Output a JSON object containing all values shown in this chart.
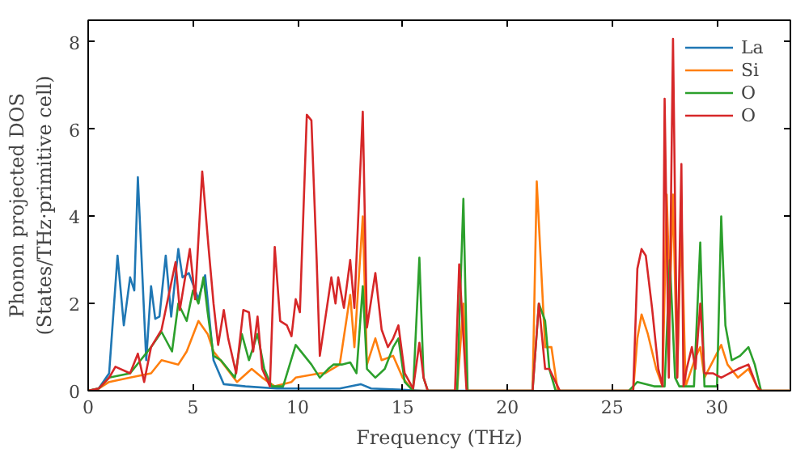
{
  "chart_data": {
    "type": "line",
    "xlabel": "Frequency (THz)",
    "ylabel": "Phonon projected DOS\n(States/THz·primitive cell)",
    "xlim": [
      0,
      33.5
    ],
    "ylim": [
      0,
      8.5
    ],
    "xticks": [
      0,
      5,
      10,
      15,
      20,
      25,
      30
    ],
    "yticks": [
      0,
      2,
      4,
      6,
      8
    ],
    "grid": false,
    "legend": "top right",
    "series": [
      {
        "name": "La",
        "color": "#1f77b4",
        "x": [
          0,
          0.5,
          1.0,
          1.4,
          1.7,
          2.0,
          2.2,
          2.37,
          2.77,
          3.0,
          3.2,
          3.4,
          3.7,
          3.96,
          4.3,
          4.5,
          4.8,
          5.26,
          5.58,
          5.98,
          6.47,
          7.5,
          9,
          12,
          13,
          13.5,
          15,
          16,
          18
        ],
        "values": [
          0,
          0.05,
          0.4,
          3.1,
          1.5,
          2.6,
          2.3,
          4.9,
          0.7,
          2.4,
          1.65,
          1.7,
          3.1,
          1.7,
          3.25,
          2.6,
          2.7,
          2.1,
          2.65,
          0.7,
          0.15,
          0.1,
          0.05,
          0.05,
          0.15,
          0.05,
          0.02,
          0,
          0
        ]
      },
      {
        "name": "Si",
        "color": "#ff7f0e",
        "x": [
          0,
          0.5,
          1.0,
          2.0,
          3.0,
          3.5,
          4.3,
          4.7,
          5.26,
          5.7,
          5.98,
          6.47,
          7.1,
          7.8,
          8.3,
          8.9,
          9.7,
          9.9,
          11.05,
          11.3,
          12.0,
          12.5,
          12.7,
          13.1,
          13.3,
          13.7,
          14.0,
          14.55,
          15.0,
          15.5,
          17.6,
          17.9,
          18.1,
          21.2,
          21.4,
          21.8,
          22.1,
          22.4,
          26.0,
          26.2,
          26.4,
          26.7,
          27.1,
          27.4,
          27.6,
          27.75,
          27.9,
          28.1,
          28.3,
          28.5,
          29.0,
          29.2,
          29.4,
          30.2,
          30.5,
          31.0,
          31.5,
          32.0,
          33.5
        ],
        "values": [
          0,
          0.05,
          0.2,
          0.3,
          0.4,
          0.7,
          0.6,
          0.9,
          1.6,
          1.3,
          0.9,
          0.6,
          0.2,
          0.5,
          0.3,
          0.1,
          0.2,
          0.3,
          0.4,
          0.4,
          0.6,
          2.2,
          1.0,
          4.0,
          0.6,
          1.2,
          0.7,
          0.8,
          0.3,
          0,
          0,
          2.0,
          0,
          0,
          4.8,
          1.0,
          1.0,
          0,
          0,
          1.2,
          1.75,
          1.3,
          0.5,
          0.1,
          4.5,
          2.1,
          4.5,
          0.3,
          4.0,
          0.1,
          0.8,
          1.0,
          0.3,
          1.05,
          0.6,
          0.3,
          0.5,
          0,
          0
        ]
      },
      {
        "name": "O",
        "color": "#2ca02c",
        "x": [
          0,
          0.5,
          1.0,
          2.0,
          3.0,
          3.5,
          4.0,
          4.3,
          4.7,
          5.0,
          5.26,
          5.5,
          5.7,
          5.98,
          6.33,
          7.0,
          7.33,
          7.67,
          8.08,
          8.4,
          8.75,
          9.3,
          9.9,
          10.65,
          11.05,
          11.45,
          11.7,
          12.1,
          12.5,
          12.8,
          13.1,
          13.3,
          13.7,
          14.15,
          14.55,
          14.8,
          15.1,
          15.5,
          15.8,
          16.0,
          16.2,
          17.6,
          17.9,
          18.1,
          21.2,
          21.5,
          21.8,
          22.0,
          22.3,
          25.8,
          26.2,
          27.0,
          27.5,
          27.75,
          28.0,
          28.2,
          28.9,
          29.2,
          29.4,
          30.0,
          30.2,
          30.4,
          30.7,
          31.1,
          31.5,
          31.8,
          32.1,
          33.5
        ],
        "values": [
          0,
          0.05,
          0.3,
          0.4,
          1.0,
          1.35,
          0.9,
          2.0,
          1.6,
          2.3,
          2.0,
          2.6,
          1.8,
          0.8,
          0.7,
          0.3,
          1.3,
          0.7,
          1.3,
          0.5,
          0.1,
          0.1,
          1.05,
          0.6,
          0.3,
          0.5,
          0.6,
          0.6,
          0.65,
          0.4,
          2.4,
          0.5,
          0.3,
          0.5,
          1.0,
          1.2,
          0.2,
          0,
          3.05,
          0.3,
          0,
          0,
          4.4,
          0,
          0,
          2.0,
          1.6,
          0.5,
          0,
          0,
          0.2,
          0.1,
          0.1,
          3.0,
          0.3,
          0.1,
          0.1,
          3.4,
          0.1,
          0.1,
          4.0,
          1.5,
          0.7,
          0.8,
          1.0,
          0.6,
          0,
          0
        ]
      },
      {
        "name": "O",
        "color": "#d62728",
        "x": [
          0,
          0.5,
          1.0,
          1.3,
          2.0,
          2.37,
          2.67,
          3.0,
          3.5,
          4.17,
          4.37,
          4.85,
          5.1,
          5.44,
          5.74,
          5.98,
          6.2,
          6.47,
          6.68,
          7.06,
          7.4,
          7.67,
          7.87,
          8.08,
          8.3,
          8.67,
          8.9,
          9.16,
          9.48,
          9.7,
          9.9,
          10.1,
          10.43,
          10.65,
          10.9,
          11.05,
          11.6,
          11.8,
          11.93,
          12.2,
          12.5,
          12.7,
          13.1,
          13.3,
          13.7,
          14.0,
          14.3,
          14.55,
          14.8,
          15.1,
          15.5,
          15.8,
          16.0,
          16.2,
          17.5,
          17.7,
          18.05,
          21.2,
          21.5,
          21.8,
          22.0,
          22.5,
          26.0,
          26.2,
          26.4,
          26.6,
          26.9,
          27.2,
          27.4,
          27.5,
          27.7,
          27.9,
          28.1,
          28.3,
          28.4,
          28.55,
          28.8,
          28.97,
          29.2,
          29.4,
          29.8,
          30.2,
          30.6,
          31.0,
          31.5,
          31.9,
          32.1,
          33.5
        ],
        "values": [
          0,
          0.05,
          0.3,
          0.55,
          0.4,
          0.85,
          0.2,
          1.0,
          1.4,
          2.95,
          1.85,
          3.25,
          2.1,
          5.03,
          3.3,
          2.0,
          1.05,
          1.85,
          1.2,
          0.4,
          1.85,
          1.8,
          0.9,
          1.7,
          0.5,
          0.1,
          3.3,
          1.6,
          1.5,
          1.25,
          2.1,
          1.8,
          6.33,
          6.2,
          3.0,
          0.8,
          2.6,
          2.0,
          2.6,
          1.9,
          3.0,
          1.9,
          6.4,
          1.45,
          2.7,
          1.4,
          1.0,
          1.2,
          1.5,
          0.4,
          0.05,
          1.1,
          0.3,
          0,
          0,
          2.9,
          0,
          0,
          2.0,
          0.5,
          0.5,
          0,
          0,
          2.8,
          3.25,
          3.1,
          1.9,
          0.5,
          0.1,
          6.7,
          0.3,
          8.07,
          0.3,
          5.2,
          0.1,
          0.5,
          1.0,
          0.5,
          2.0,
          0.4,
          0.4,
          0.3,
          0.4,
          0.5,
          0.6,
          0.1,
          0,
          0
        ]
      }
    ]
  }
}
